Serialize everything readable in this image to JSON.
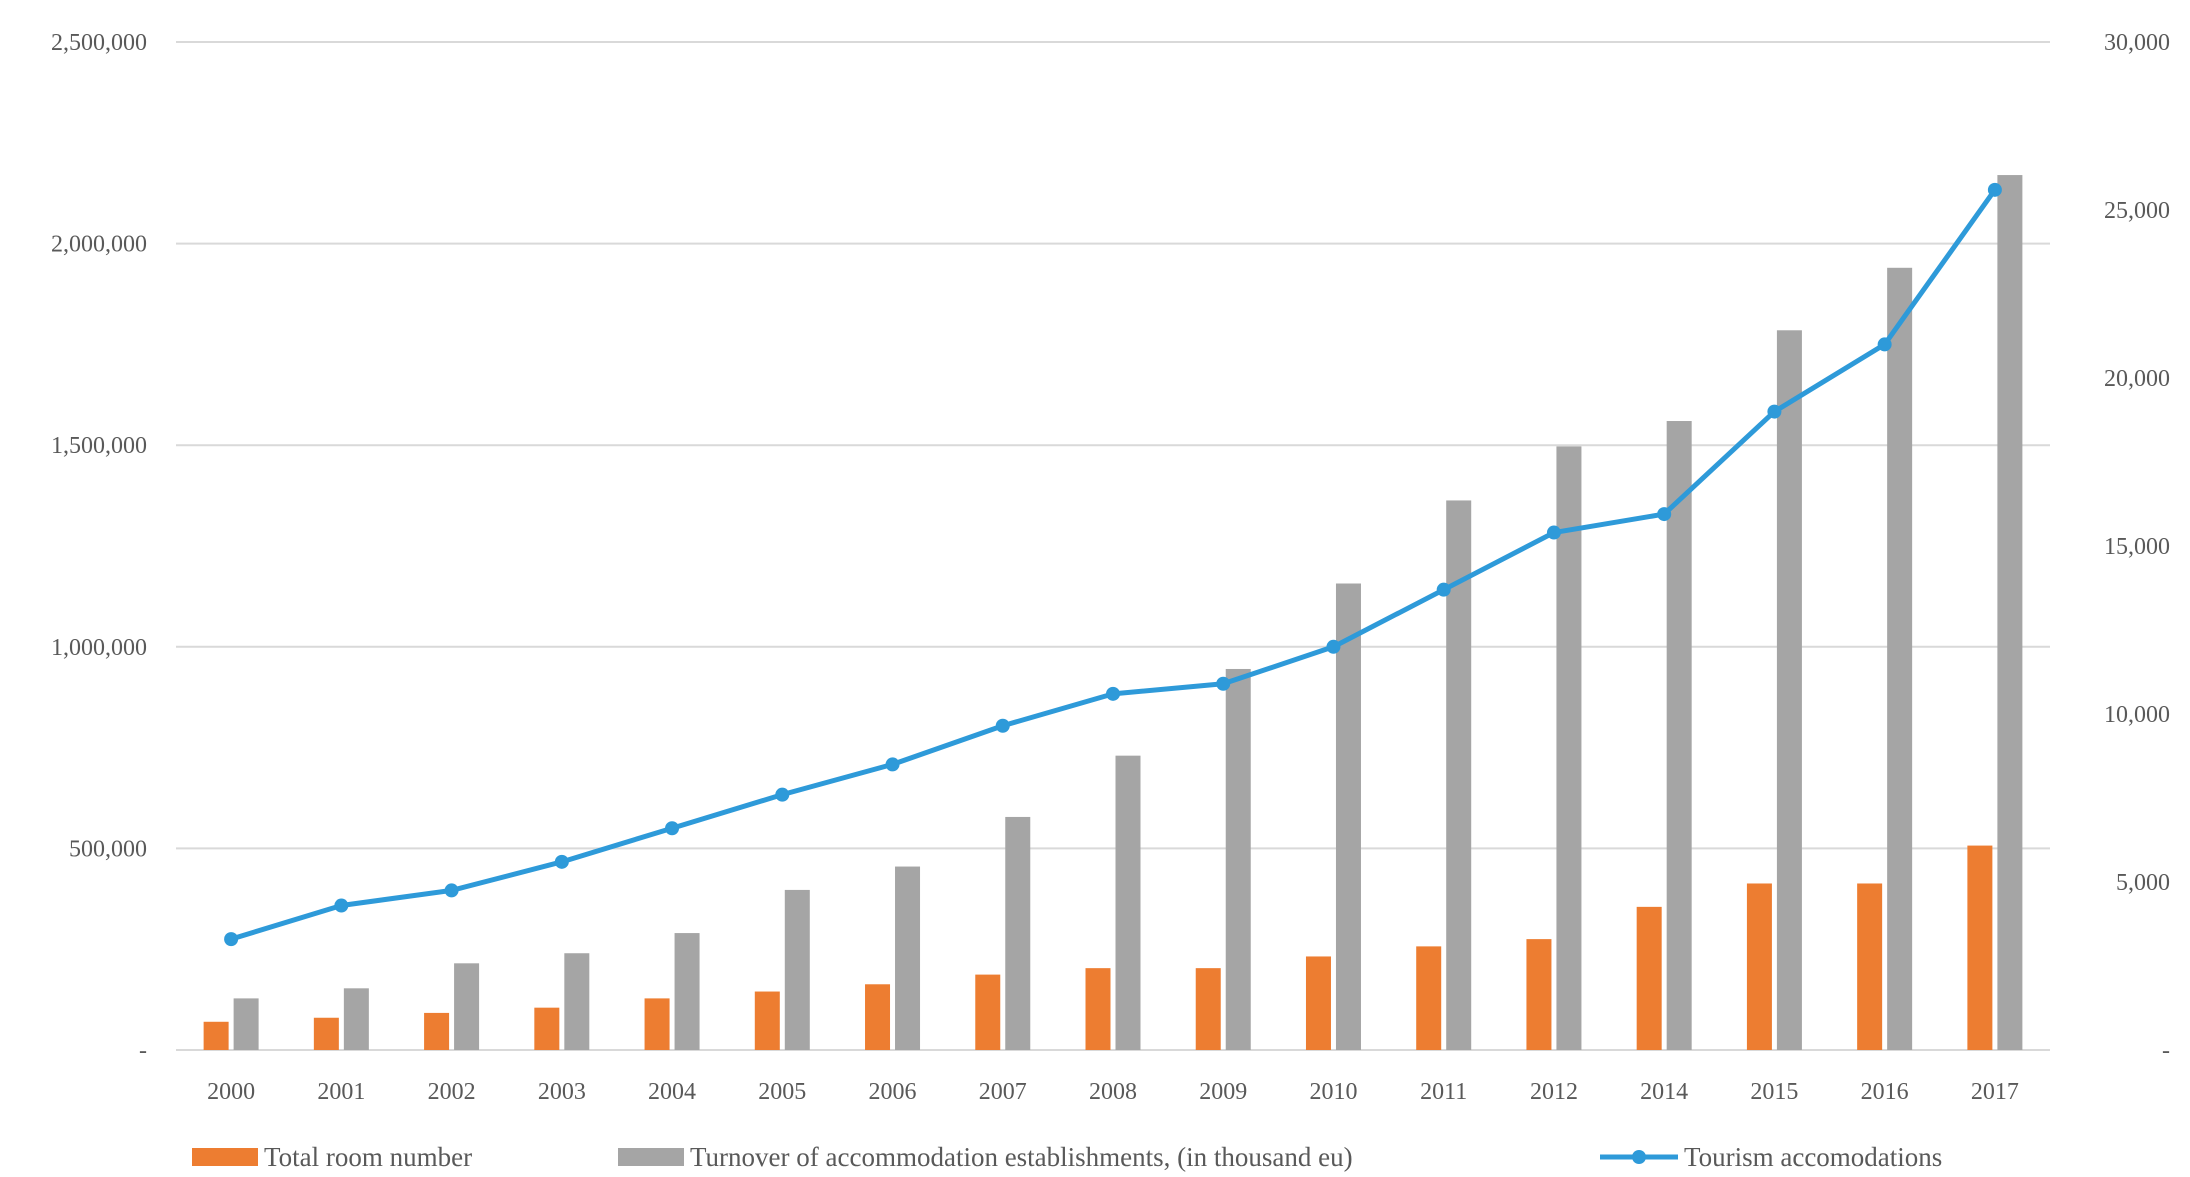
{
  "chart_data": {
    "type": "bar",
    "title": "",
    "xlabel": "",
    "ylabel": "",
    "categories": [
      "2000",
      "2001",
      "2002",
      "2003",
      "2004",
      "2005",
      "2006",
      "2007",
      "2008",
      "2009",
      "2010",
      "2011",
      "2012",
      "2014",
      "2015",
      "2016",
      "2017"
    ],
    "left_axis": {
      "ylim": [
        0,
        2500000
      ],
      "ticks": [
        "-",
        "500,000",
        "1,000,000",
        "1,500,000",
        "2,000,000",
        "2,500,000"
      ],
      "tick_values": [
        0,
        500000,
        1000000,
        1500000,
        2000000,
        2500000
      ]
    },
    "right_axis": {
      "ylim": [
        0,
        30000
      ],
      "ticks": [
        "-",
        "5,000",
        "10,000",
        "15,000",
        "20,000",
        "25,000",
        "30,000"
      ],
      "tick_values": [
        0,
        5000,
        10000,
        15000,
        20000,
        25000,
        30000
      ]
    },
    "grid": true,
    "legend_position": "bottom",
    "series": [
      {
        "name": "Total room number",
        "type": "bar",
        "axis": "left",
        "color": "#ED7D31",
        "values": [
          70000,
          80000,
          92000,
          105000,
          128000,
          145000,
          163000,
          187000,
          203000,
          203000,
          232000,
          257000,
          275000,
          355000,
          413000,
          413000,
          507000
        ]
      },
      {
        "name": "Turnover of accommodation establishments, (in thousand eu)",
        "type": "bar",
        "axis": "left",
        "color": "#A5A5A5",
        "values": [
          128000,
          153000,
          215000,
          240000,
          290000,
          397000,
          455000,
          578000,
          730000,
          945000,
          1157000,
          1363000,
          1497000,
          1560000,
          1785000,
          1940000,
          2170000
        ]
      },
      {
        "name": "Tourism accomodations",
        "type": "line",
        "axis": "right",
        "color": "#2E9AD9",
        "values": [
          3300,
          4300,
          4750,
          5600,
          6600,
          7600,
          8500,
          9650,
          10600,
          10900,
          12000,
          13700,
          15400,
          15950,
          19000,
          21000,
          25600
        ]
      }
    ]
  }
}
